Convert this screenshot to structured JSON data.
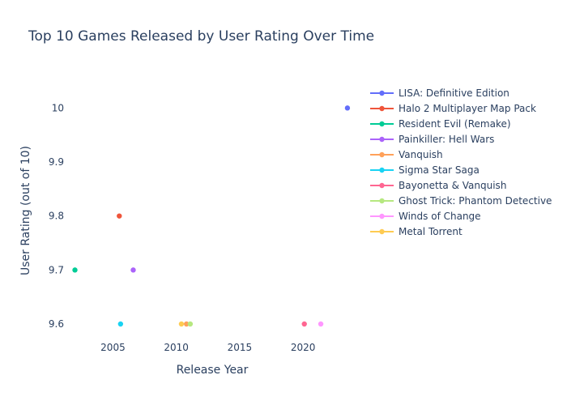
{
  "chart_data": {
    "type": "scatter",
    "title": "Top 10 Games Released by User Rating Over Time",
    "xlabel": "Release Year",
    "ylabel": "User Rating (out of 10)",
    "xlim": [
      2001.2,
      2024.4
    ],
    "ylim": [
      9.57,
      10.05
    ],
    "xticks": [
      2005,
      2010,
      2015,
      2020
    ],
    "yticks": [
      9.6,
      9.7,
      9.8,
      9.9,
      10
    ],
    "ytick_labels": [
      "9.6",
      "9.7",
      "9.8",
      "9.9",
      "10"
    ],
    "grid": false,
    "legend_position": "right",
    "series": [
      {
        "name": "LISA: Definitive Edition",
        "color": "#636efa",
        "points": [
          {
            "x": 2023.5,
            "y": 10.0
          }
        ]
      },
      {
        "name": "Halo 2 Multiplayer Map Pack",
        "color": "#EF553B",
        "points": [
          {
            "x": 2005.5,
            "y": 9.8
          }
        ]
      },
      {
        "name": "Resident Evil (Remake)",
        "color": "#00cc96",
        "points": [
          {
            "x": 2002.0,
            "y": 9.7
          }
        ]
      },
      {
        "name": "Painkiller: Hell Wars",
        "color": "#ab63fa",
        "points": [
          {
            "x": 2006.6,
            "y": 9.7
          }
        ]
      },
      {
        "name": "Vanquish",
        "color": "#FFA15A",
        "points": [
          {
            "x": 2010.8,
            "y": 9.6
          }
        ]
      },
      {
        "name": "Sigma Star Saga",
        "color": "#19d3f3",
        "points": [
          {
            "x": 2005.6,
            "y": 9.6
          }
        ]
      },
      {
        "name": "Bayonetta & Vanquish",
        "color": "#FF6692",
        "points": [
          {
            "x": 2020.1,
            "y": 9.6
          }
        ]
      },
      {
        "name": "Ghost Trick: Phantom Detective",
        "color": "#B6E880",
        "points": [
          {
            "x": 2011.1,
            "y": 9.6
          }
        ]
      },
      {
        "name": "Winds of Change",
        "color": "#FF97FF",
        "points": [
          {
            "x": 2021.4,
            "y": 9.6
          }
        ]
      },
      {
        "name": "Metal Torrent",
        "color": "#FECB52",
        "points": [
          {
            "x": 2010.4,
            "y": 9.6
          }
        ]
      }
    ]
  }
}
